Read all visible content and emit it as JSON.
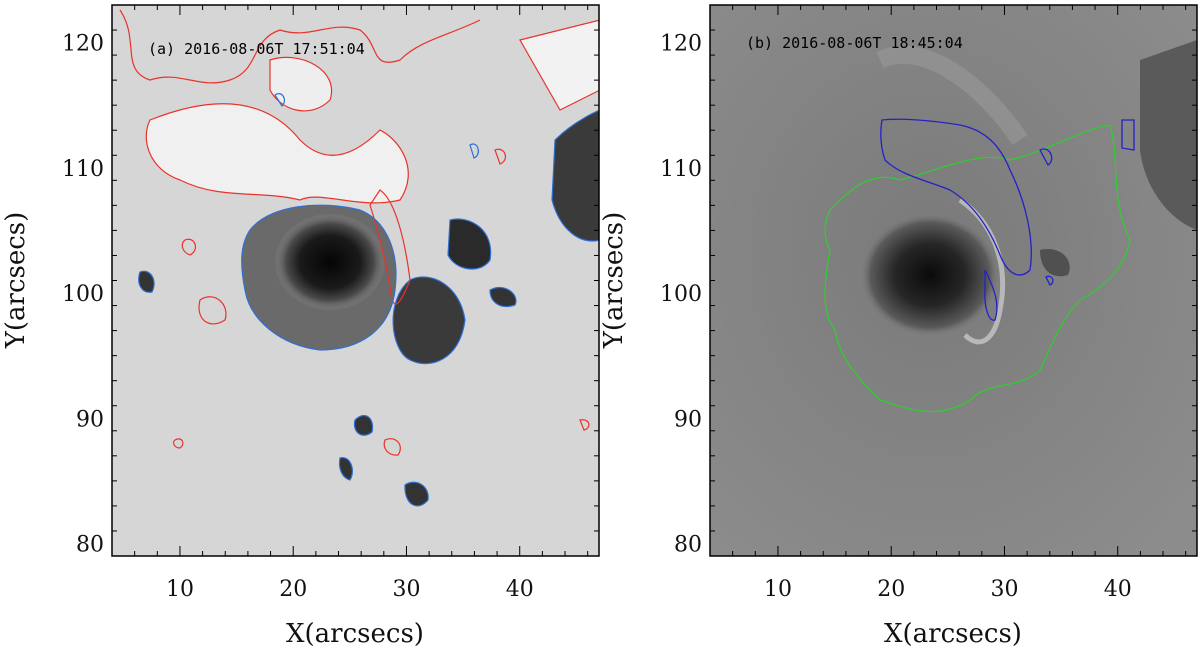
{
  "figure": {
    "panels": [
      {
        "id": "a",
        "label": "(a) 2016-08-06T 17:51:04",
        "xlabel": "X(arcsecs)",
        "ylabel": "Y(arcsecs)",
        "xlim": [
          4,
          47
        ],
        "ylim": [
          79,
          123
        ],
        "xticks": [
          "10",
          "20",
          "30",
          "40"
        ],
        "yticks": [
          "80",
          "90",
          "100",
          "110",
          "120"
        ],
        "contour_colors": [
          "#e8332b",
          "#2f6fd6"
        ]
      },
      {
        "id": "b",
        "label": "(b) 2016-08-06T 18:45:04",
        "xlabel": "X(arcsecs)",
        "ylabel": "Y(arcsecs)",
        "xlim": [
          4,
          47
        ],
        "ylim": [
          79,
          123
        ],
        "xticks": [
          "10",
          "20",
          "30",
          "40"
        ],
        "yticks": [
          "80",
          "90",
          "100",
          "110",
          "120"
        ],
        "contour_colors": [
          "#2bd12b",
          "#2222c8"
        ]
      }
    ]
  }
}
